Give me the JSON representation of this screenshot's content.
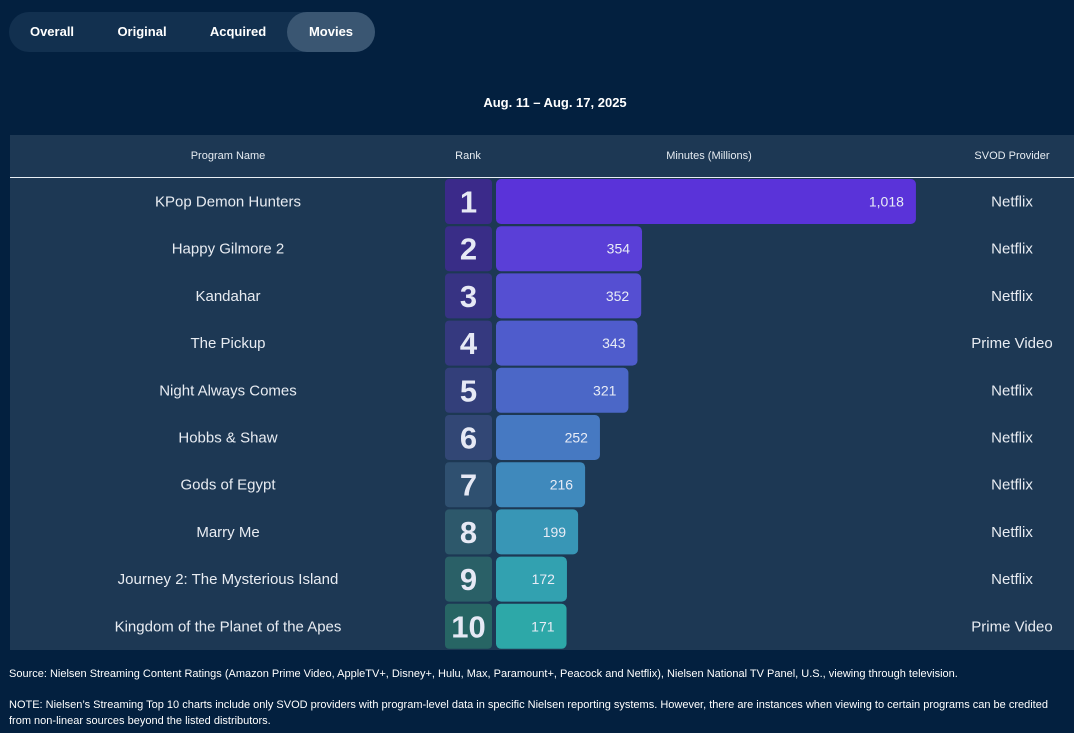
{
  "tabs": [
    {
      "label": "Overall",
      "active": false
    },
    {
      "label": "Original",
      "active": false
    },
    {
      "label": "Acquired",
      "active": false
    },
    {
      "label": "Movies",
      "active": true
    }
  ],
  "date_range": "Aug. 11 – Aug. 17, 2025",
  "headers": {
    "program": "Program Name",
    "rank": "Rank",
    "minutes": "Minutes (Millions)",
    "provider": "SVOD Provider"
  },
  "chart_data": {
    "type": "bar",
    "orientation": "horizontal",
    "title": "",
    "ylabel": "Minutes (Millions)",
    "categories": [
      "KPop Demon Hunters",
      "Happy Gilmore 2",
      "Kandahar",
      "The Pickup",
      "Night Always Comes",
      "Hobbs & Shaw",
      "Gods of Egypt",
      "Marry Me",
      "Journey 2: The Mysterious Island",
      "Kingdom of the Planet of the Apes"
    ],
    "values": [
      1018,
      354,
      352,
      343,
      321,
      252,
      216,
      199,
      172,
      171
    ],
    "value_labels": [
      "1,018",
      "354",
      "352",
      "343",
      "321",
      "252",
      "216",
      "199",
      "172",
      "171"
    ],
    "ranks": [
      "1",
      "2",
      "3",
      "4",
      "5",
      "6",
      "7",
      "8",
      "9",
      "10"
    ],
    "providers": [
      "Netflix",
      "Netflix",
      "Netflix",
      "Prime Video",
      "Netflix",
      "Netflix",
      "Netflix",
      "Netflix",
      "Netflix",
      "Prime Video"
    ],
    "bar_colors": [
      "#5a33d9",
      "#5a3fd7",
      "#554fd2",
      "#4f5ccc",
      "#4b67c7",
      "#4679c2",
      "#3f89bc",
      "#3896b6",
      "#32a1b0",
      "#2da8a8"
    ],
    "rank_colors": [
      "#3b2a8a",
      "#392d87",
      "#373383",
      "#35397f",
      "#333f7a",
      "#324775",
      "#2f5070",
      "#2d586b",
      "#2a6067",
      "#276564"
    ]
  },
  "footer": {
    "source": "Source: Nielsen Streaming Content Ratings (Amazon Prime Video, AppleTV+, Disney+, Hulu, Max, Paramount+, Peacock and Netflix), Nielsen National TV Panel, U.S., viewing through television.",
    "note": "NOTE: Nielsen’s Streaming Top 10 charts include only SVOD providers with program-level data in specific Nielsen reporting systems. However, there are instances when viewing to certain programs can be credited from non-linear sources beyond the listed distributors."
  }
}
